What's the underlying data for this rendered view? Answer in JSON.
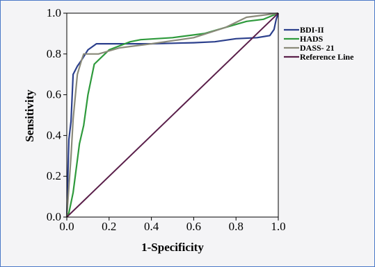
{
  "chart_data": {
    "type": "line",
    "title": "",
    "xlabel": "1-Specificity",
    "ylabel": "Sensitivity",
    "xlim": [
      0.0,
      1.0
    ],
    "ylim": [
      0.0,
      1.0
    ],
    "x_ticks": [
      "0.0",
      "0.2",
      "0.4",
      "0.6",
      "0.8",
      "1.0"
    ],
    "y_ticks": [
      "0.0",
      "0.2",
      "0.4",
      "0.6",
      "0.8",
      "1.0"
    ],
    "grid": false,
    "legend_position": "right",
    "series": [
      {
        "name": "BDI-II",
        "color": "#2b3f8c",
        "points": [
          [
            0.0,
            0.0
          ],
          [
            0.005,
            0.2
          ],
          [
            0.01,
            0.38
          ],
          [
            0.02,
            0.47
          ],
          [
            0.03,
            0.7
          ],
          [
            0.05,
            0.74
          ],
          [
            0.07,
            0.77
          ],
          [
            0.1,
            0.82
          ],
          [
            0.14,
            0.85
          ],
          [
            0.2,
            0.85
          ],
          [
            0.4,
            0.85
          ],
          [
            0.6,
            0.855
          ],
          [
            0.7,
            0.86
          ],
          [
            0.8,
            0.875
          ],
          [
            0.9,
            0.88
          ],
          [
            0.96,
            0.89
          ],
          [
            0.98,
            0.92
          ],
          [
            0.99,
            0.97
          ],
          [
            1.0,
            1.0
          ]
        ]
      },
      {
        "name": "HADS",
        "color": "#2e9a3c",
        "points": [
          [
            0.0,
            0.0
          ],
          [
            0.01,
            0.02
          ],
          [
            0.03,
            0.12
          ],
          [
            0.05,
            0.28
          ],
          [
            0.06,
            0.36
          ],
          [
            0.08,
            0.45
          ],
          [
            0.1,
            0.6
          ],
          [
            0.13,
            0.75
          ],
          [
            0.2,
            0.82
          ],
          [
            0.3,
            0.86
          ],
          [
            0.35,
            0.87
          ],
          [
            0.5,
            0.88
          ],
          [
            0.65,
            0.9
          ],
          [
            0.75,
            0.93
          ],
          [
            0.85,
            0.96
          ],
          [
            0.93,
            0.97
          ],
          [
            1.0,
            1.0
          ]
        ]
      },
      {
        "name": "DASS- 21",
        "color": "#8a8a7a",
        "points": [
          [
            0.0,
            0.0
          ],
          [
            0.02,
            0.3
          ],
          [
            0.03,
            0.48
          ],
          [
            0.05,
            0.7
          ],
          [
            0.07,
            0.77
          ],
          [
            0.08,
            0.8
          ],
          [
            0.15,
            0.8
          ],
          [
            0.25,
            0.83
          ],
          [
            0.4,
            0.85
          ],
          [
            0.6,
            0.88
          ],
          [
            0.75,
            0.93
          ],
          [
            0.85,
            0.98
          ],
          [
            1.0,
            1.0
          ]
        ]
      },
      {
        "name": "Reference Line",
        "color": "#5a1f4a",
        "points": [
          [
            0.0,
            0.0
          ],
          [
            1.0,
            1.0
          ]
        ]
      }
    ]
  }
}
